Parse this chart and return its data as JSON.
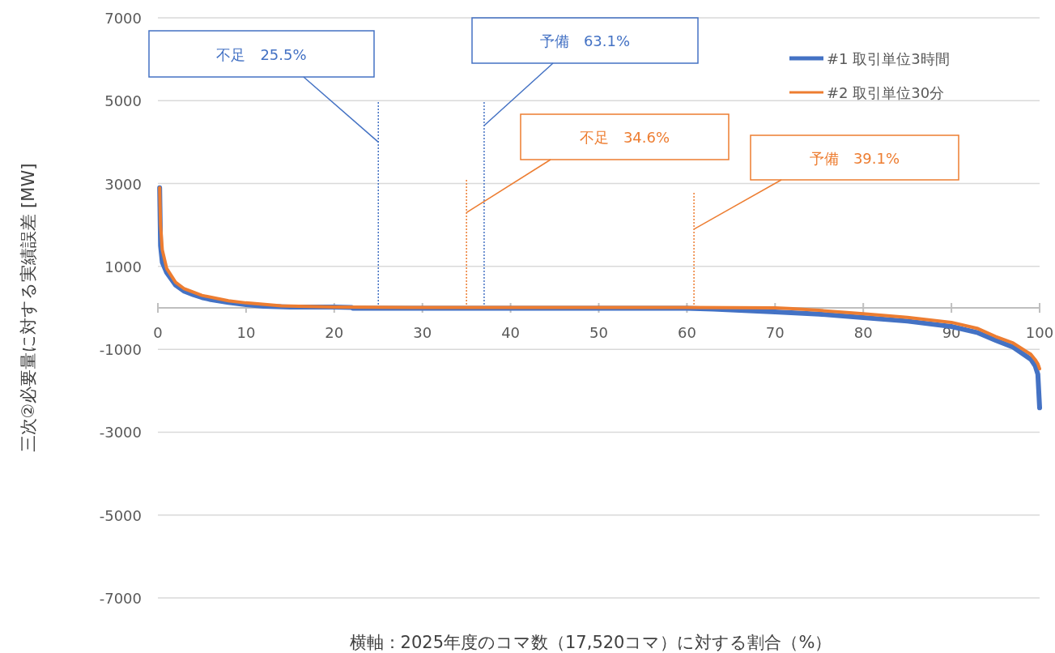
{
  "chart_data": {
    "type": "line",
    "xlabel": "横軸：2025年度のコマ数（17,520コマ）に対する割合（%）",
    "ylabel": "三次②必要量に対する実績誤差 [MW]",
    "xlim": [
      0,
      100
    ],
    "xticks": [
      0,
      10,
      20,
      30,
      40,
      50,
      60,
      70,
      80,
      90,
      100
    ],
    "ylim": [
      -7000,
      7000
    ],
    "yticks": [
      -7000,
      -5000,
      -3000,
      -1000,
      1000,
      3000,
      5000,
      7000
    ],
    "grid": "y",
    "legend": "top right",
    "series": [
      {
        "name": "#1  取引単位3時間",
        "color": "#4472c4",
        "x": [
          0.2,
          0.3,
          0.5,
          1,
          2,
          3,
          4,
          5,
          6,
          8,
          10,
          12,
          15,
          20,
          22,
          22.1,
          30,
          40,
          50,
          60,
          63,
          70,
          75,
          80,
          85,
          90,
          93,
          95,
          97,
          99,
          99.5,
          99.8,
          100
        ],
        "values": [
          2900,
          1500,
          1100,
          850,
          550,
          400,
          320,
          250,
          200,
          130,
          80,
          40,
          20,
          20,
          10,
          -10,
          -10,
          -10,
          -10,
          -10,
          -30,
          -100,
          -150,
          -235,
          -320,
          -450,
          -600,
          -780,
          -950,
          -1240,
          -1400,
          -1600,
          -2410
        ]
      },
      {
        "name": "#2  取引単位30分",
        "color": "#ed7d31",
        "x": [
          0.2,
          0.3,
          0.5,
          1,
          2,
          3,
          5,
          8,
          10,
          14,
          20,
          30,
          40,
          50,
          60,
          70,
          72,
          75,
          80,
          85,
          90,
          93,
          95,
          97,
          99,
          99.5,
          99.8,
          100
        ],
        "values": [
          2900,
          2000,
          1400,
          950,
          620,
          460,
          300,
          170,
          120,
          50,
          20,
          10,
          10,
          10,
          10,
          0,
          -20,
          -60,
          -140,
          -230,
          -350,
          -500,
          -690,
          -850,
          -1120,
          -1250,
          -1350,
          -1470
        ]
      }
    ],
    "ref_lines": [
      {
        "axis": "x",
        "value": 25,
        "label": "不足　25.5%",
        "color": "#4472c4",
        "line_style": "dotted"
      },
      {
        "axis": "x",
        "value": 37,
        "label": "予備　63.1%",
        "color": "#4472c4",
        "line_style": "dotted"
      },
      {
        "axis": "x",
        "value": 35,
        "label": "不足　34.6%",
        "color": "#ed7d31",
        "line_style": "dotted"
      },
      {
        "axis": "x",
        "value": 60.8,
        "label": "予備　39.1%",
        "color": "#ed7d31",
        "line_style": "dotted"
      }
    ]
  }
}
